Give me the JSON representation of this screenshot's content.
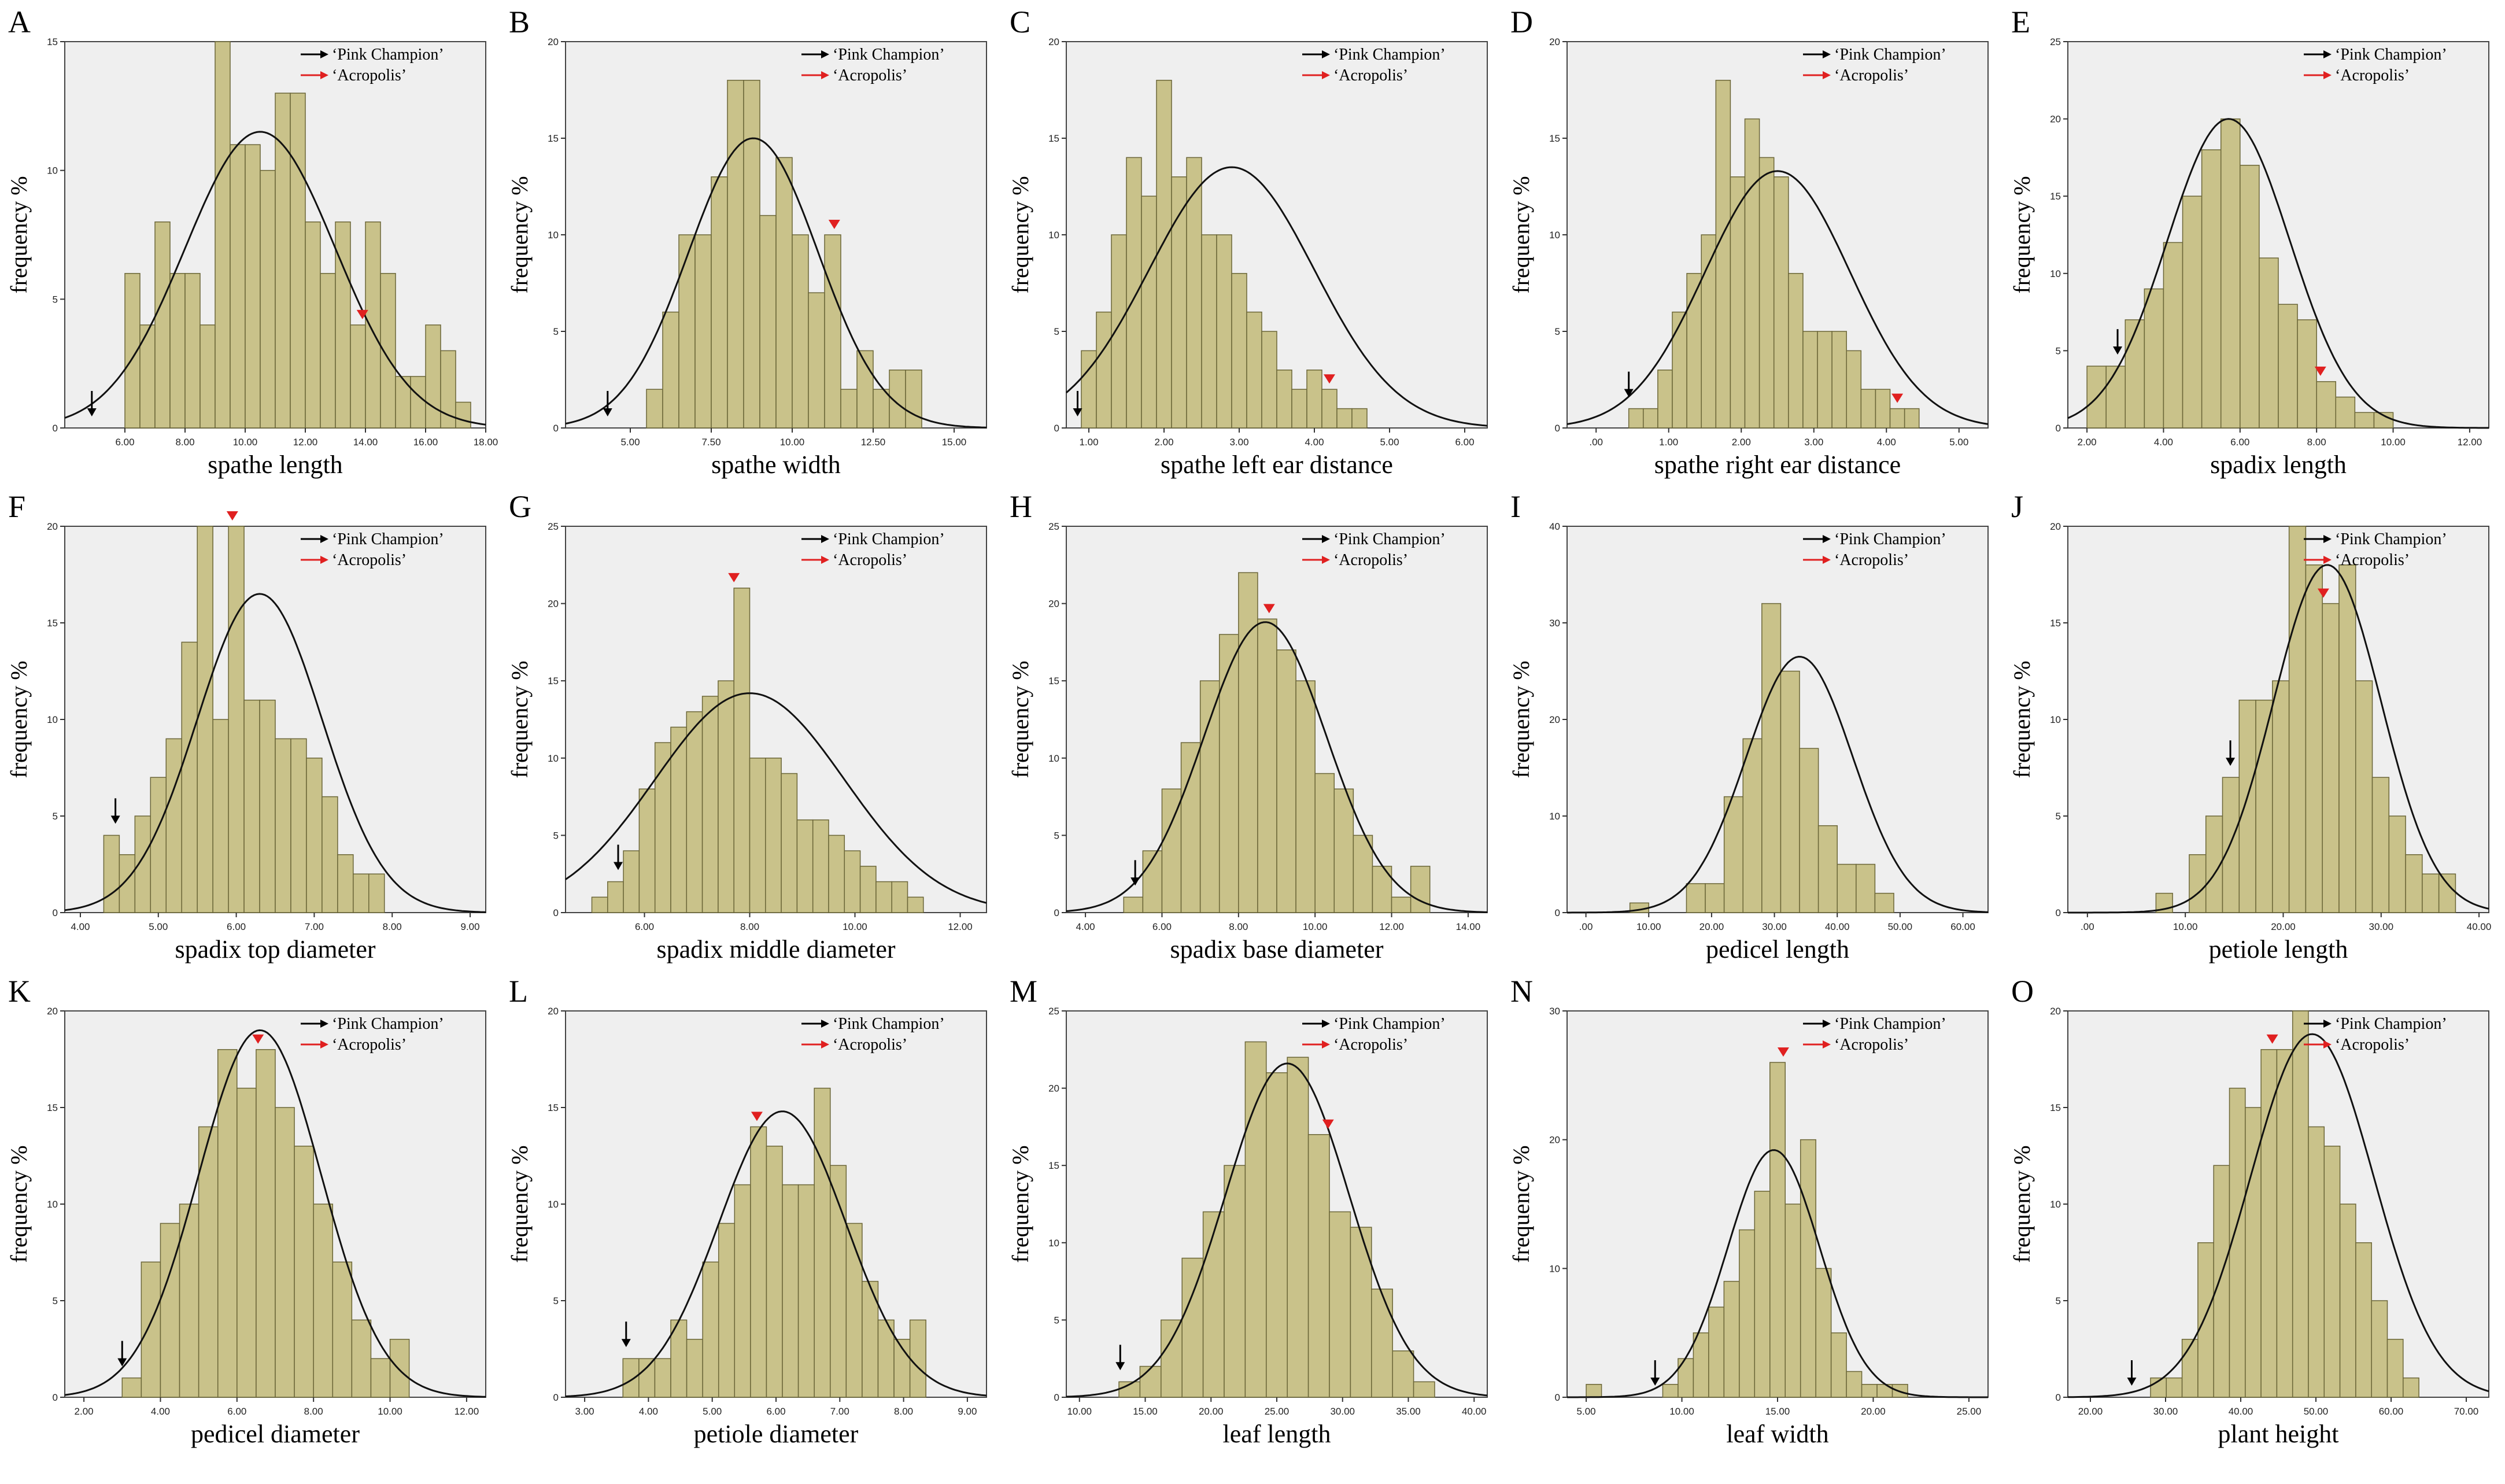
{
  "figure": {
    "legend": {
      "series": [
        "‘Pink Champion’",
        "‘Acropolis’"
      ],
      "colors": [
        "#000000",
        "#e02020"
      ]
    },
    "ylabel": "frequency %"
  },
  "chart_data": [
    {
      "type": "bar",
      "panel": "A",
      "xlabel": "spathe length",
      "ylabel": "frequency %",
      "xlim": [
        4.0,
        18.0
      ],
      "ylim": [
        0,
        15
      ],
      "xticks": [
        6,
        8,
        10,
        12,
        14,
        16,
        18
      ],
      "xtick_labels": [
        "6.00",
        "8.00",
        "10.00",
        "12.00",
        "14.00",
        "16.00",
        "18.00"
      ],
      "yticks": [
        0,
        5,
        10,
        15
      ],
      "ytick_labels": [
        "0",
        "5",
        "10",
        "15"
      ],
      "bin_start": 6.0,
      "bin_width": 0.5,
      "values": [
        6,
        4,
        8,
        6,
        6,
        4,
        15,
        11,
        11,
        10,
        13,
        13,
        8,
        6,
        8,
        4,
        8,
        6,
        2,
        2,
        4,
        3,
        1
      ],
      "normal_curve": {
        "mean": 10.5,
        "sd": 2.5,
        "peak": 11.5
      },
      "markers": {
        "Pink Champion": 4.9,
        "Acropolis": 13.9
      }
    },
    {
      "type": "bar",
      "panel": "B",
      "xlabel": "spathe width",
      "ylabel": "frequency %",
      "xlim": [
        3.0,
        16.0
      ],
      "ylim": [
        0,
        20
      ],
      "xticks": [
        5,
        7.5,
        10,
        12.5,
        15
      ],
      "xtick_labels": [
        "5.00",
        "7.50",
        "10.00",
        "12.50",
        "15.00"
      ],
      "yticks": [
        0,
        5,
        10,
        15,
        20
      ],
      "ytick_labels": [
        "0",
        "5",
        "10",
        "15",
        "20"
      ],
      "bin_start": 5.5,
      "bin_width": 0.5,
      "values": [
        2,
        6,
        10,
        10,
        13,
        18,
        18,
        11,
        14,
        10,
        7,
        10,
        2,
        4,
        2,
        3,
        3
      ],
      "normal_curve": {
        "mean": 8.8,
        "sd": 2.0,
        "peak": 15
      },
      "markers": {
        "Pink Champion": 4.3,
        "Acropolis": 11.3
      }
    },
    {
      "type": "bar",
      "panel": "C",
      "xlabel": "spathe left ear distance",
      "ylabel": "frequency %",
      "xlim": [
        0.7,
        6.3
      ],
      "ylim": [
        0,
        20
      ],
      "xticks": [
        1,
        2,
        3,
        4,
        5,
        6
      ],
      "xtick_labels": [
        "1.00",
        "2.00",
        "3.00",
        "4.00",
        "5.00",
        "6.00"
      ],
      "yticks": [
        0,
        5,
        10,
        15,
        20
      ],
      "ytick_labels": [
        "0",
        "5",
        "10",
        "15",
        "20"
      ],
      "bin_start": 0.9,
      "bin_width": 0.2,
      "values": [
        4,
        6,
        10,
        14,
        12,
        18,
        13,
        14,
        10,
        10,
        8,
        6,
        5,
        3,
        2,
        3,
        2,
        1,
        1
      ],
      "normal_curve": {
        "mean": 2.9,
        "sd": 1.1,
        "peak": 13.5
      },
      "markers": {
        "Pink Champion": 0.85,
        "Acropolis": 4.2
      }
    },
    {
      "type": "bar",
      "panel": "D",
      "xlabel": "spathe right ear distance",
      "ylabel": "frequency %",
      "xlim": [
        -0.4,
        5.4
      ],
      "ylim": [
        0,
        20
      ],
      "xticks": [
        0,
        1,
        2,
        3,
        4,
        5
      ],
      "xtick_labels": [
        ".00",
        "1.00",
        "2.00",
        "3.00",
        "4.00",
        "5.00"
      ],
      "yticks": [
        0,
        5,
        10,
        15,
        20
      ],
      "ytick_labels": [
        "0",
        "5",
        "10",
        "15",
        "20"
      ],
      "bin_start": 0.45,
      "bin_width": 0.2,
      "values": [
        1,
        1,
        3,
        6,
        8,
        10,
        18,
        13,
        16,
        14,
        13,
        8,
        5,
        5,
        5,
        4,
        2,
        2,
        1,
        1
      ],
      "normal_curve": {
        "mean": 2.5,
        "sd": 1.0,
        "peak": 13.3
      },
      "markers": {
        "Pink Champion": 0.45,
        "Acropolis": 4.15
      }
    },
    {
      "type": "bar",
      "panel": "E",
      "xlabel": "spadix length",
      "ylabel": "frequency %",
      "xlim": [
        1.5,
        12.5
      ],
      "ylim": [
        0,
        25
      ],
      "xticks": [
        2,
        4,
        6,
        8,
        10,
        12
      ],
      "xtick_labels": [
        "2.00",
        "4.00",
        "6.00",
        "8.00",
        "10.00",
        "12.00"
      ],
      "yticks": [
        0,
        5,
        10,
        15,
        20,
        25
      ],
      "ytick_labels": [
        "0",
        "5",
        "10",
        "15",
        "20",
        "25"
      ],
      "bin_start": 2.0,
      "bin_width": 0.5,
      "values": [
        4,
        4,
        7,
        9,
        12,
        15,
        18,
        20,
        17,
        11,
        8,
        7,
        3,
        2,
        1,
        1
      ],
      "normal_curve": {
        "mean": 5.7,
        "sd": 1.6,
        "peak": 20
      },
      "markers": {
        "Pink Champion": 2.8,
        "Acropolis": 8.1
      }
    },
    {
      "type": "bar",
      "panel": "F",
      "xlabel": "spadix top diameter",
      "ylabel": "frequency %",
      "xlim": [
        3.8,
        9.2
      ],
      "ylim": [
        0,
        20
      ],
      "xticks": [
        4,
        5,
        6,
        7,
        8,
        9
      ],
      "xtick_labels": [
        "4.00",
        "5.00",
        "6.00",
        "7.00",
        "8.00",
        "9.00"
      ],
      "yticks": [
        0,
        5,
        10,
        15,
        20
      ],
      "ytick_labels": [
        "0",
        "5",
        "10",
        "15",
        "20"
      ],
      "bin_start": 4.3,
      "bin_width": 0.2,
      "values": [
        4,
        3,
        5,
        7,
        9,
        14,
        20,
        10,
        20,
        11,
        11,
        9,
        9,
        8,
        6,
        3,
        2,
        2
      ],
      "normal_curve": {
        "mean": 6.3,
        "sd": 0.8,
        "peak": 16.5
      },
      "markers": {
        "Pink Champion": 4.45,
        "Acropolis": 5.95
      }
    },
    {
      "type": "bar",
      "panel": "G",
      "xlabel": "spadix middle  diameter",
      "ylabel": "frequency %",
      "xlim": [
        4.5,
        12.5
      ],
      "ylim": [
        0,
        25
      ],
      "xticks": [
        6,
        8,
        10,
        12
      ],
      "xtick_labels": [
        "6.00",
        "8.00",
        "10.00",
        "12.00"
      ],
      "yticks": [
        0,
        5,
        10,
        15,
        20,
        25
      ],
      "ytick_labels": [
        "0",
        "5",
        "10",
        "15",
        "20",
        "25"
      ],
      "bin_start": 5.0,
      "bin_width": 0.3,
      "values": [
        1,
        2,
        4,
        8,
        11,
        12,
        13,
        14,
        15,
        21,
        10,
        10,
        9,
        6,
        6,
        5,
        4,
        3,
        2,
        2,
        1
      ],
      "normal_curve": {
        "mean": 8.0,
        "sd": 1.8,
        "peak": 14.2
      },
      "markers": {
        "Pink Champion": 5.5,
        "Acropolis": 7.7
      }
    },
    {
      "type": "bar",
      "panel": "H",
      "xlabel": "spadix base diameter",
      "ylabel": "frequency %",
      "xlim": [
        3.5,
        14.5
      ],
      "ylim": [
        0,
        25
      ],
      "xticks": [
        4,
        6,
        8,
        10,
        12,
        14
      ],
      "xtick_labels": [
        "4.00",
        "6.00",
        "8.00",
        "10.00",
        "12.00",
        "14.00"
      ],
      "yticks": [
        0,
        5,
        10,
        15,
        20,
        25
      ],
      "ytick_labels": [
        "0",
        "5",
        "10",
        "15",
        "20",
        "25"
      ],
      "bin_start": 5.0,
      "bin_width": 0.5,
      "values": [
        1,
        4,
        8,
        11,
        15,
        18,
        22,
        19,
        17,
        15,
        9,
        8,
        5,
        3,
        1,
        3
      ],
      "normal_curve": {
        "mean": 8.7,
        "sd": 1.6,
        "peak": 18.8
      },
      "markers": {
        "Pink Champion": 5.3,
        "Acropolis": 8.8
      }
    },
    {
      "type": "bar",
      "panel": "I",
      "xlabel": "pedicel length",
      "ylabel": "frequency %",
      "xlim": [
        -3,
        64
      ],
      "ylim": [
        0,
        40
      ],
      "xticks": [
        0,
        10,
        20,
        30,
        40,
        50,
        60
      ],
      "xtick_labels": [
        ".00",
        "10.00",
        "20.00",
        "30.00",
        "40.00",
        "50.00",
        "60.00"
      ],
      "yticks": [
        0,
        10,
        20,
        30,
        40
      ],
      "ytick_labels": [
        "0",
        "10",
        "20",
        "30",
        "40"
      ],
      "bin_start": 7.0,
      "bin_width": 3.0,
      "values": [
        1,
        0,
        0,
        3,
        3,
        12,
        18,
        32,
        25,
        17,
        9,
        5,
        5,
        2
      ],
      "normal_curve": {
        "mean": 34,
        "sd": 8.5,
        "peak": 26.5
      },
      "markers": {}
    },
    {
      "type": "bar",
      "panel": "J",
      "xlabel": "petiole length",
      "ylabel": "frequency %",
      "xlim": [
        -2,
        41
      ],
      "ylim": [
        0,
        20
      ],
      "xticks": [
        0,
        10,
        20,
        30,
        40
      ],
      "xtick_labels": [
        ".00",
        "10.00",
        "20.00",
        "30.00",
        "40.00"
      ],
      "yticks": [
        0,
        5,
        10,
        15,
        20
      ],
      "ytick_labels": [
        "0",
        "5",
        "10",
        "15",
        "20"
      ],
      "bin_start": 7.0,
      "bin_width": 1.7,
      "values": [
        1,
        0,
        3,
        5,
        7,
        11,
        11,
        12,
        20,
        18,
        16,
        18,
        12,
        7,
        5,
        3,
        2,
        2
      ],
      "normal_curve": {
        "mean": 24.5,
        "sd": 5.5,
        "peak": 18
      },
      "markers": {
        "Pink Champion": 14.6,
        "Acropolis": 24.1
      }
    },
    {
      "type": "bar",
      "panel": "K",
      "xlabel": "pedicel diameter",
      "ylabel": "frequency %",
      "xlim": [
        1.5,
        12.5
      ],
      "ylim": [
        0,
        20
      ],
      "xticks": [
        2,
        4,
        6,
        8,
        10,
        12
      ],
      "xtick_labels": [
        "2.00",
        "4.00",
        "6.00",
        "8.00",
        "10.00",
        "12.00"
      ],
      "yticks": [
        0,
        5,
        10,
        15,
        20
      ],
      "ytick_labels": [
        "0",
        "5",
        "10",
        "15",
        "20"
      ],
      "bin_start": 3.0,
      "bin_width": 0.5,
      "values": [
        1,
        7,
        9,
        10,
        14,
        18,
        16,
        18,
        15,
        13,
        10,
        7,
        4,
        2,
        3
      ],
      "normal_curve": {
        "mean": 6.6,
        "sd": 1.6,
        "peak": 19
      },
      "markers": {
        "Pink Champion": 3.0,
        "Acropolis": 6.55
      }
    },
    {
      "type": "bar",
      "panel": "L",
      "xlabel": "petiole diameter",
      "ylabel": "frequency %",
      "xlim": [
        2.7,
        9.3
      ],
      "ylim": [
        0,
        20
      ],
      "xticks": [
        3,
        4,
        5,
        6,
        7,
        8,
        9
      ],
      "xtick_labels": [
        "3.00",
        "4.00",
        "5.00",
        "6.00",
        "7.00",
        "8.00",
        "9.00"
      ],
      "yticks": [
        0,
        5,
        10,
        15,
        20
      ],
      "ytick_labels": [
        "0",
        "5",
        "10",
        "15",
        "20"
      ],
      "bin_start": 3.6,
      "bin_width": 0.25,
      "values": [
        2,
        2,
        2,
        4,
        3,
        7,
        9,
        11,
        14,
        13,
        11,
        11,
        16,
        12,
        9,
        6,
        4,
        3,
        4
      ],
      "normal_curve": {
        "mean": 6.1,
        "sd": 1.0,
        "peak": 14.8
      },
      "markers": {
        "Pink Champion": 3.65,
        "Acropolis": 5.7
      }
    },
    {
      "type": "bar",
      "panel": "M",
      "xlabel": "leaf length",
      "ylabel": "frequency %",
      "xlim": [
        9.0,
        41.0
      ],
      "ylim": [
        0,
        25
      ],
      "xticks": [
        10,
        15,
        20,
        25,
        30,
        35,
        40
      ],
      "xtick_labels": [
        "10.00",
        "15.00",
        "20.00",
        "25.00",
        "30.00",
        "35.00",
        "40.00"
      ],
      "yticks": [
        0,
        5,
        10,
        15,
        20,
        25
      ],
      "ytick_labels": [
        "0",
        "5",
        "10",
        "15",
        "20",
        "25"
      ],
      "bin_start": 13.0,
      "bin_width": 1.6,
      "values": [
        1,
        2,
        5,
        9,
        12,
        15,
        23,
        21,
        22,
        17,
        12,
        11,
        7,
        3,
        1
      ],
      "normal_curve": {
        "mean": 25.8,
        "sd": 4.7,
        "peak": 21.6
      },
      "markers": {
        "Pink Champion": 13.1,
        "Acropolis": 28.9
      }
    },
    {
      "type": "bar",
      "panel": "N",
      "xlabel": "leaf width",
      "ylabel": "frequency %",
      "xlim": [
        4.0,
        26.0
      ],
      "ylim": [
        0,
        30
      ],
      "xticks": [
        5,
        10,
        15,
        20,
        25
      ],
      "xtick_labels": [
        "5.00",
        "10.00",
        "15.00",
        "20.00",
        "25.00"
      ],
      "yticks": [
        0,
        10,
        20,
        30
      ],
      "ytick_labels": [
        "0",
        "10",
        "20",
        "30"
      ],
      "bin_start": 5.0,
      "bin_width": 0.8,
      "values": [
        1,
        0,
        0,
        0,
        0,
        1,
        3,
        5,
        7,
        9,
        13,
        16,
        26,
        15,
        20,
        10,
        5,
        2,
        1,
        1,
        1
      ],
      "normal_curve": {
        "mean": 14.8,
        "sd": 2.4,
        "peak": 19.2
      },
      "markers": {
        "Pink Champion": 8.6,
        "Acropolis": 15.3
      }
    },
    {
      "type": "bar",
      "panel": "O",
      "xlabel": "plant height",
      "ylabel": "frequency %",
      "xlim": [
        17,
        73
      ],
      "ylim": [
        0,
        20
      ],
      "xticks": [
        20,
        30,
        40,
        50,
        60,
        70
      ],
      "xtick_labels": [
        "20.00",
        "30.00",
        "40.00",
        "50.00",
        "60.00",
        "70.00"
      ],
      "yticks": [
        0,
        5,
        10,
        15,
        20
      ],
      "ytick_labels": [
        "0",
        "5",
        "10",
        "15",
        "20"
      ],
      "bin_start": 28.0,
      "bin_width": 2.1,
      "values": [
        1,
        1,
        3,
        8,
        12,
        16,
        15,
        18,
        18,
        20,
        14,
        13,
        10,
        8,
        5,
        3,
        1
      ],
      "normal_curve": {
        "mean": 49.5,
        "sd": 8.2,
        "peak": 18.8
      },
      "markers": {
        "Pink Champion": 25.5,
        "Acropolis": 44.2
      }
    }
  ]
}
